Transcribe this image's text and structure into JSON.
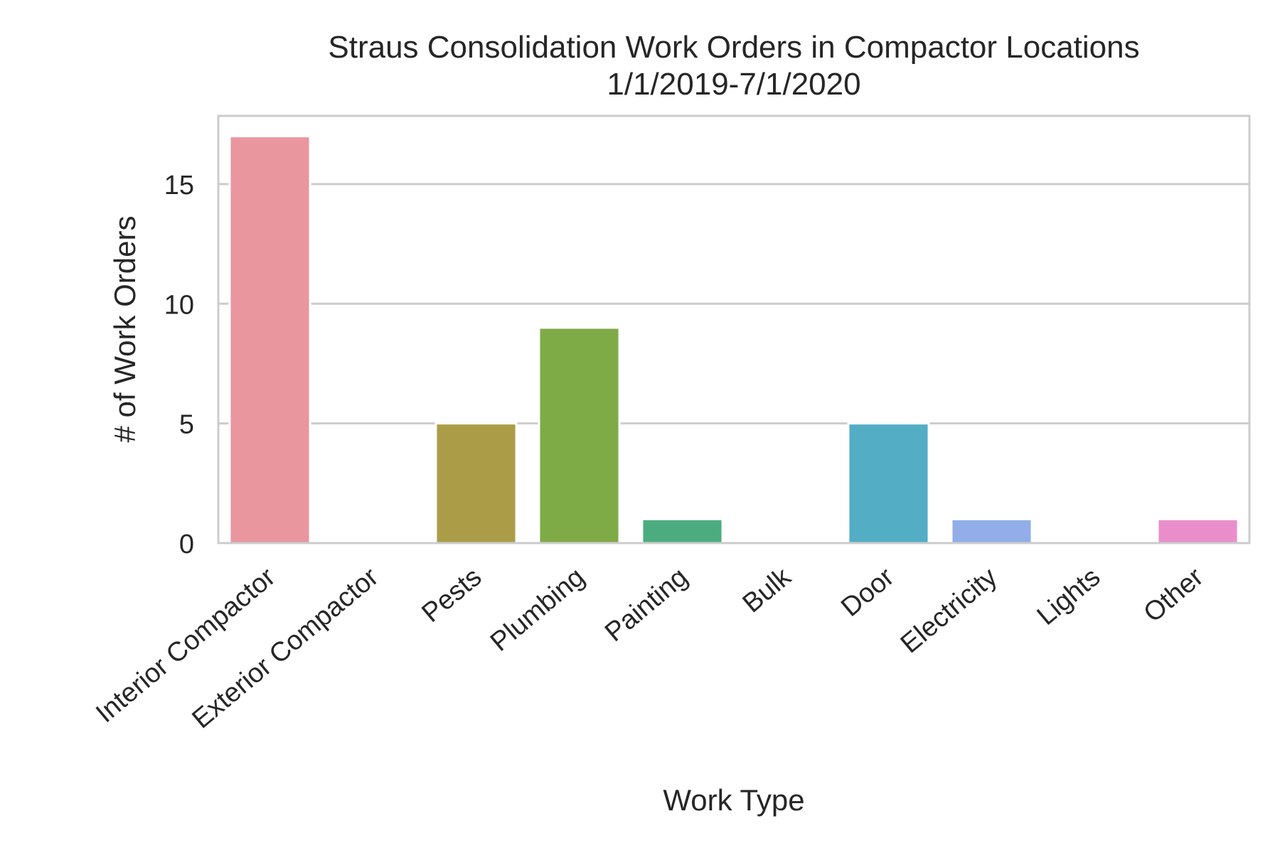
{
  "chart_data": {
    "type": "bar",
    "title_lines": [
      "Straus Consolidation Work Orders in Compactor Locations",
      "1/1/2019-7/1/2020"
    ],
    "xlabel": "Work Type",
    "ylabel": "# of Work Orders",
    "categories": [
      "Interior Compactor",
      "Exterior Compactor",
      "Pests",
      "Plumbing",
      "Painting",
      "Bulk",
      "Door",
      "Electricity",
      "Lights",
      "Other"
    ],
    "values": [
      17,
      0,
      5,
      9,
      1,
      0,
      5,
      1,
      0,
      1
    ],
    "colors": [
      "#e9969f",
      "#c8a060",
      "#ab9c47",
      "#7fab47",
      "#4bad7f",
      "#4aaea0",
      "#52adc5",
      "#92aee9",
      "#c49ee8",
      "#ea8ecb"
    ],
    "yticks": [
      0,
      5,
      10,
      15
    ],
    "ylim": [
      0,
      17.85
    ],
    "grid": true,
    "legend": "none"
  }
}
